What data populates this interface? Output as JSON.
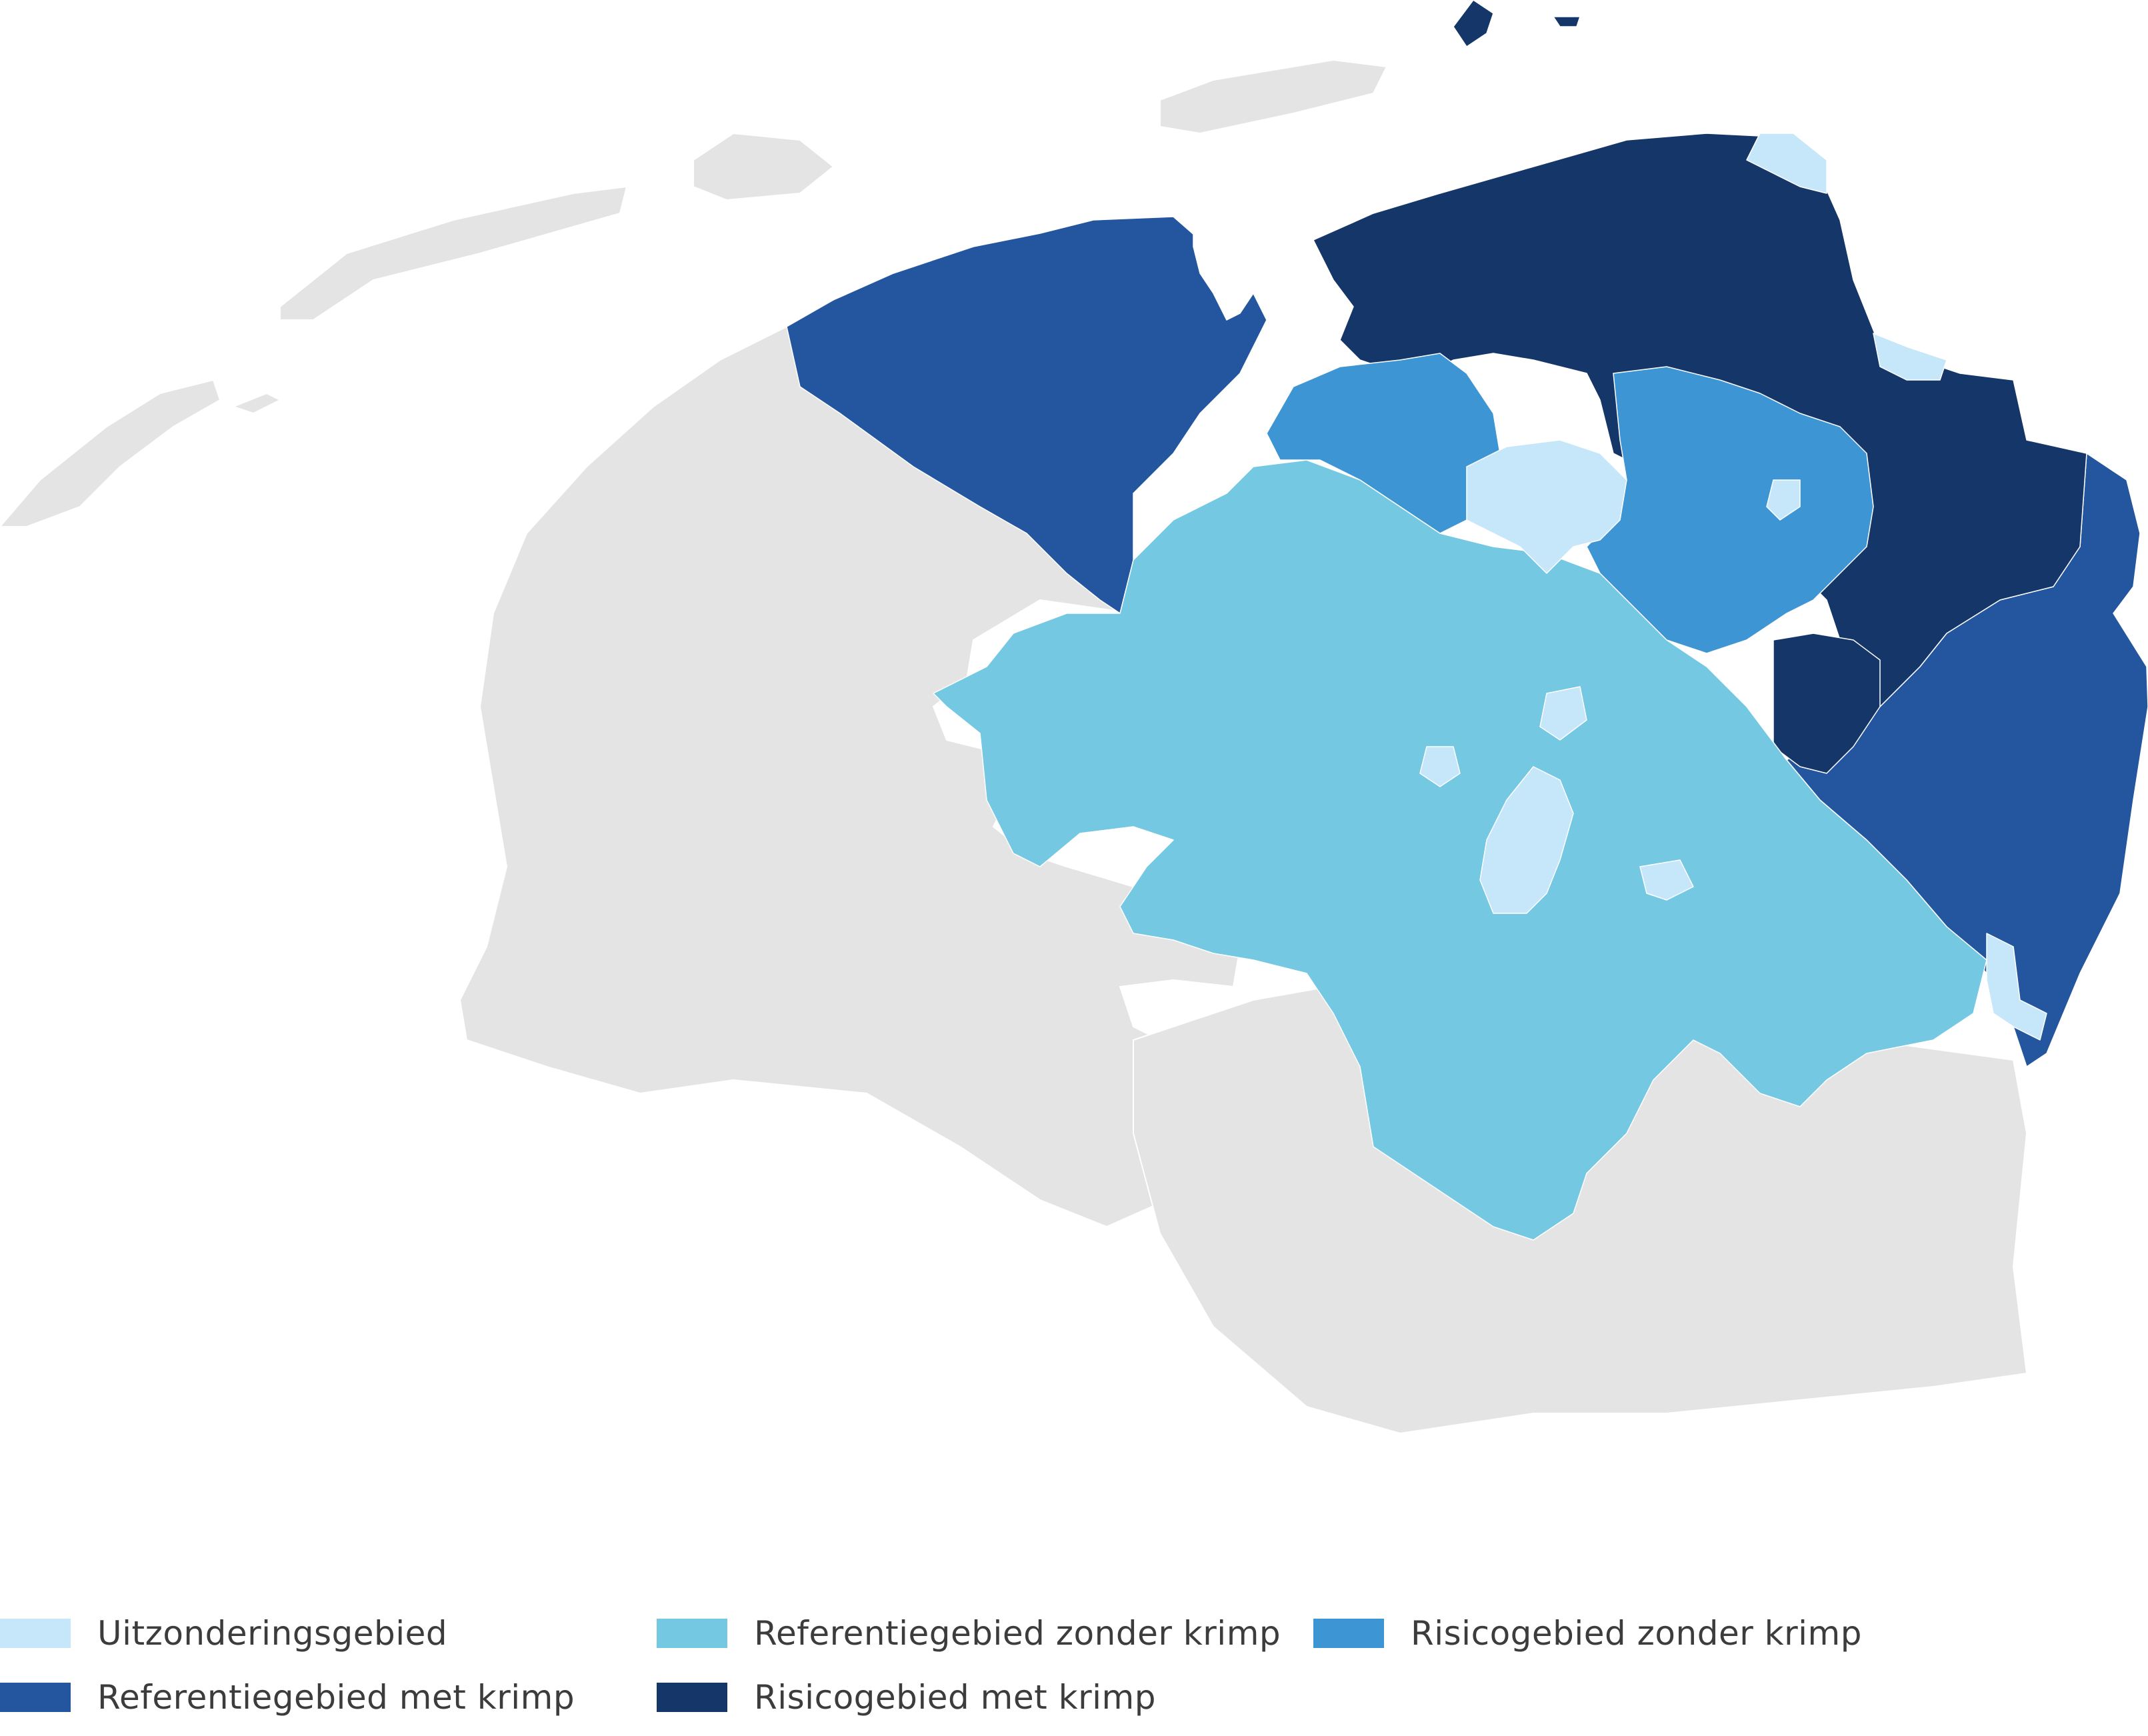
{
  "colors": {
    "background_land": "#e4e4e4",
    "water": "#ffffff",
    "boundary": "#ffffff",
    "uitzondering": "#c6e6fa",
    "referentie_zonder": "#74c8e2",
    "risico_zonder": "#3e95d4",
    "referentie_met": "#2456a0",
    "risico_met": "#153668"
  },
  "legend": [
    {
      "key": "uitzondering",
      "label": "Uitzonderingsgebied",
      "color": "#c6e6fa"
    },
    {
      "key": "referentie_zonder",
      "label": "Referentiegebied zonder krimp",
      "color": "#74c8e2"
    },
    {
      "key": "risico_zonder",
      "label": "Risicogebied zonder krimp",
      "color": "#3e95d4"
    },
    {
      "key": "referentie_met",
      "label": "Referentiegebied met krimp",
      "color": "#2456a0"
    },
    {
      "key": "risico_met",
      "label": "Risicogebied met krimp",
      "color": "#153668"
    }
  ]
}
